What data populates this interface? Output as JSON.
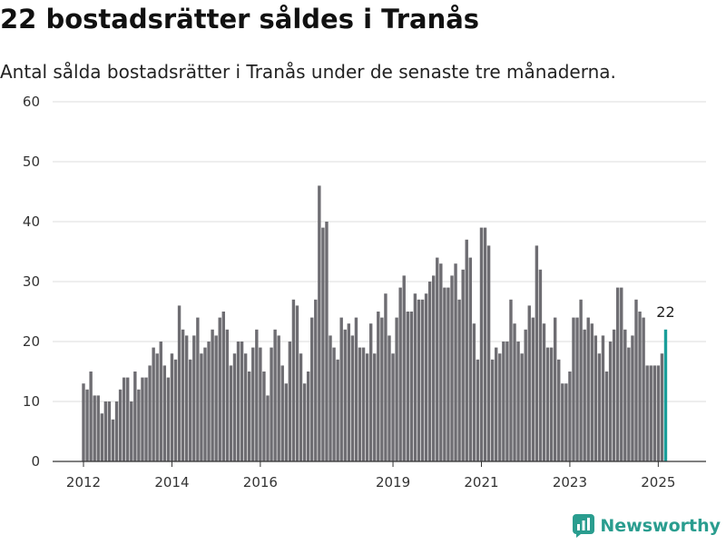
{
  "title": "22 bostadsrätter såldes i Tranås",
  "subtitle": "Antal sålda bostadsrätter i Tranås under de senaste tre månaderna.",
  "brand": {
    "name": "Newsworthy",
    "icon": "newsworthy-logo-icon",
    "color": "#2a9d8f"
  },
  "colors": {
    "bar": "#6e6d72",
    "highlight": "#1a9e9a",
    "grid": "#dddddd",
    "axis": "#333333"
  },
  "chart_data": {
    "type": "bar",
    "title": "",
    "xlabel": "",
    "ylabel": "",
    "ylim": [
      0,
      60
    ],
    "yticks": [
      0,
      10,
      20,
      30,
      40,
      50,
      60
    ],
    "grid": true,
    "legend": "none",
    "xticks": [
      {
        "label": "2012",
        "index": 0
      },
      {
        "label": "2014",
        "index": 24
      },
      {
        "label": "2016",
        "index": 48
      },
      {
        "label": "2019",
        "index": 84
      },
      {
        "label": "2021",
        "index": 108
      },
      {
        "label": "2023",
        "index": 132
      },
      {
        "label": "2025",
        "index": 156
      }
    ],
    "values": [
      13,
      12,
      15,
      11,
      11,
      8,
      10,
      10,
      7,
      10,
      12,
      14,
      14,
      10,
      15,
      12,
      14,
      14,
      16,
      19,
      18,
      20,
      16,
      14,
      18,
      17,
      26,
      22,
      21,
      17,
      21,
      24,
      18,
      19,
      20,
      22,
      21,
      24,
      25,
      22,
      16,
      18,
      20,
      20,
      18,
      15,
      19,
      22,
      19,
      15,
      11,
      19,
      22,
      21,
      16,
      13,
      20,
      27,
      26,
      18,
      13,
      15,
      24,
      27,
      46,
      39,
      40,
      21,
      19,
      17,
      24,
      22,
      23,
      21,
      24,
      19,
      19,
      18,
      23,
      18,
      25,
      24,
      28,
      21,
      18,
      24,
      29,
      31,
      25,
      25,
      28,
      27,
      27,
      28,
      30,
      31,
      34,
      33,
      29,
      29,
      31,
      33,
      27,
      32,
      37,
      34,
      23,
      17,
      39,
      39,
      36,
      17,
      19,
      18,
      20,
      20,
      27,
      23,
      20,
      18,
      22,
      26,
      24,
      36,
      32,
      23,
      19,
      19,
      24,
      17,
      13,
      13,
      15,
      24,
      24,
      27,
      22,
      24,
      23,
      21,
      18,
      21,
      15,
      20,
      22,
      29,
      29,
      22,
      19,
      21,
      27,
      25,
      24,
      16,
      16,
      16,
      16,
      18,
      22
    ],
    "highlight_last": true,
    "annotation": "22"
  }
}
